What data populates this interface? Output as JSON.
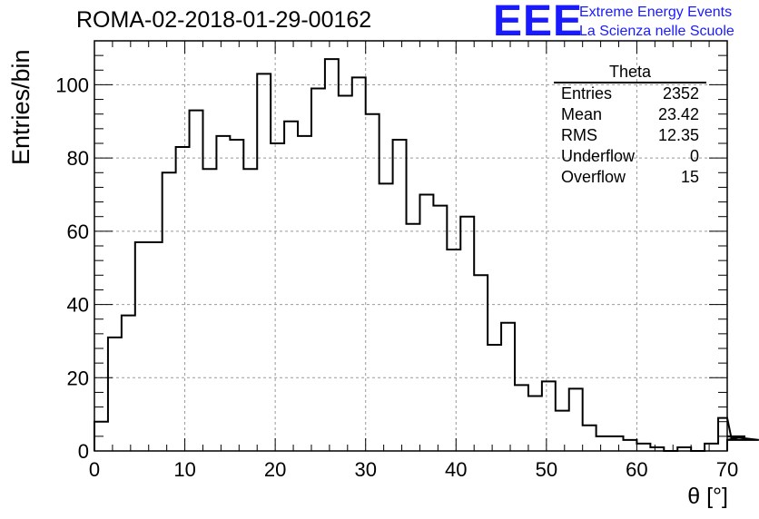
{
  "header": {
    "title": "ROMA-02-2018-01-29-00162",
    "logo": "EEE",
    "logo_line1": "Extreme Energy Events",
    "logo_line2": "La Scienza nelle Scuole"
  },
  "stats_box": {
    "title": "Theta",
    "rows": [
      {
        "label": "Entries",
        "value": "2352"
      },
      {
        "label": "Mean",
        "value": "23.42"
      },
      {
        "label": "RMS",
        "value": "12.35"
      },
      {
        "label": "Underflow",
        "value": "0"
      },
      {
        "label": "Overflow",
        "value": "15"
      }
    ]
  },
  "chart_data": {
    "type": "bar",
    "style": "step-histogram",
    "xlabel": "θ [°]",
    "ylabel": "Entries/bin",
    "xlim": [
      0,
      70
    ],
    "ylim": [
      0,
      112
    ],
    "grid": true,
    "bin_width": 1.5,
    "x_ticks": [
      0,
      10,
      20,
      30,
      40,
      50,
      60,
      70
    ],
    "y_ticks": [
      0,
      20,
      40,
      60,
      80,
      100
    ],
    "values": [
      8,
      31,
      37,
      57,
      57,
      76,
      83,
      93,
      77,
      86,
      85,
      77,
      103,
      84,
      90,
      86,
      99,
      107,
      97,
      102,
      92,
      73,
      85,
      62,
      70,
      67,
      55,
      64,
      48,
      29,
      35,
      18,
      15,
      19,
      11,
      17,
      7,
      4,
      4,
      3,
      2,
      1,
      0,
      1,
      0,
      2,
      9,
      3,
      4,
      3
    ],
    "color": "#000000"
  }
}
